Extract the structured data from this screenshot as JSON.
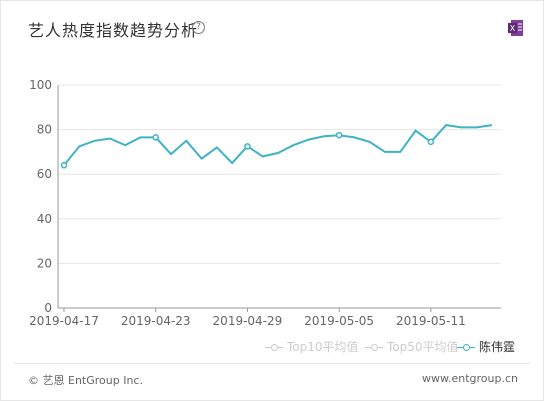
{
  "header": {
    "title": "艺人热度指数趋势分析",
    "help_glyph": "?",
    "export_icon": "excel-export-icon"
  },
  "chart_data": {
    "type": "line",
    "x": [
      "2019-04-17",
      "2019-04-18",
      "2019-04-19",
      "2019-04-20",
      "2019-04-21",
      "2019-04-22",
      "2019-04-23",
      "2019-04-24",
      "2019-04-25",
      "2019-04-26",
      "2019-04-27",
      "2019-04-28",
      "2019-04-29",
      "2019-04-30",
      "2019-05-01",
      "2019-05-02",
      "2019-05-03",
      "2019-05-04",
      "2019-05-05",
      "2019-05-06",
      "2019-05-07",
      "2019-05-08",
      "2019-05-09",
      "2019-05-10",
      "2019-05-11",
      "2019-05-12",
      "2019-05-13",
      "2019-05-14",
      "2019-05-15"
    ],
    "tick_labels": [
      "2019-04-17",
      "2019-04-23",
      "2019-04-29",
      "2019-05-05",
      "2019-05-11"
    ],
    "y_ticks": [
      "0",
      "20",
      "40",
      "60",
      "80",
      "100"
    ],
    "ylim": [
      0,
      100
    ],
    "grid": true,
    "series": [
      {
        "name": "陈伟霆",
        "color": "#3db3c3",
        "values": [
          64,
          72.5,
          75,
          76,
          73,
          76.5,
          76.5,
          69,
          75,
          67,
          72,
          65,
          72.5,
          68,
          69.5,
          73,
          75.5,
          77,
          77.5,
          76.5,
          74.5,
          70,
          70,
          79.5,
          74.5,
          82,
          81,
          81,
          82
        ],
        "markers": [
          0,
          6,
          12,
          18,
          24
        ]
      }
    ],
    "legend": [
      {
        "name": "Top10平均值",
        "active": false
      },
      {
        "name": "Top50平均值",
        "active": false
      },
      {
        "name": "陈伟霆",
        "active": true
      }
    ],
    "legend_position": "bottom-right"
  },
  "footer": {
    "copyright": "© 艺恩 EntGroup Inc.",
    "site": "www.entgroup.cn"
  },
  "colors": {
    "line": "#3db3c3",
    "inactive_legend": "#cccccc",
    "axis": "#999999",
    "grid": "#e5e5e5"
  }
}
